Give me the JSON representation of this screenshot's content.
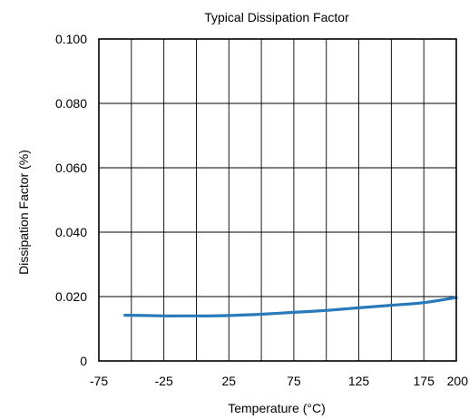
{
  "chart_data": {
    "type": "line",
    "title": "Typical Dissipation Factor",
    "xlabel": "Temperature (°C)",
    "ylabel": "Dissipation Factor (%)",
    "xlim": [
      -75,
      200
    ],
    "ylim": [
      0,
      0.1
    ],
    "grid": true,
    "x_gridlines": [
      -75,
      -50,
      -25,
      0,
      25,
      50,
      75,
      100,
      125,
      150,
      175,
      200
    ],
    "y_gridlines": [
      0,
      0.02,
      0.04,
      0.06,
      0.08,
      0.1
    ],
    "x_ticks": [
      {
        "value": -75,
        "label": "-75"
      },
      {
        "value": -25,
        "label": "-25"
      },
      {
        "value": 25,
        "label": "25"
      },
      {
        "value": 75,
        "label": "75"
      },
      {
        "value": 125,
        "label": "125"
      },
      {
        "value": 175,
        "label": "175"
      },
      {
        "value": 200,
        "label": "200"
      }
    ],
    "y_ticks": [
      {
        "value": 0,
        "label": "0"
      },
      {
        "value": 0.02,
        "label": "0.020"
      },
      {
        "value": 0.04,
        "label": "0.040"
      },
      {
        "value": 0.06,
        "label": "0.060"
      },
      {
        "value": 0.08,
        "label": "0.080"
      },
      {
        "value": 0.1,
        "label": "0.100"
      }
    ],
    "series": [
      {
        "color": "#2779b9",
        "x": [
          -55,
          -40,
          -25,
          -10,
          0,
          10,
          25,
          50,
          75,
          100,
          125,
          150,
          175,
          200
        ],
        "y": [
          0.0142,
          0.0141,
          0.014,
          0.014,
          0.014,
          0.014,
          0.0141,
          0.0145,
          0.0151,
          0.0157,
          0.0165,
          0.0173,
          0.0181,
          0.0197
        ]
      }
    ]
  }
}
